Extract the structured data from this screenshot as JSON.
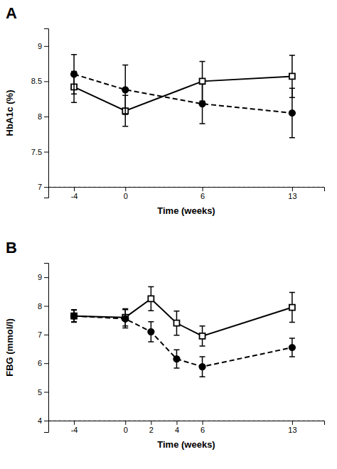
{
  "chart_data": [
    {
      "type": "line",
      "title": "A",
      "xlabel": "Time (weeks)",
      "ylabel": "HbA1c (%)",
      "x": [
        -4,
        0,
        6,
        13
      ],
      "series": [
        {
          "values": [
            8.42,
            8.08,
            8.5,
            8.57
          ],
          "errors": [
            0.22,
            0.22,
            0.28,
            0.3
          ],
          "color": "#000000",
          "line_style": "solid",
          "marker": "open-square"
        },
        {
          "values": [
            8.6,
            8.38,
            8.18,
            8.05
          ],
          "errors": [
            0.28,
            0.35,
            0.28,
            0.35
          ],
          "color": "#000000",
          "line_style": "dashed",
          "marker": "circle"
        }
      ],
      "reference_line": 7.0,
      "xlim": [
        -6.0,
        15.5
      ],
      "xticks": [
        -4,
        0,
        6,
        13
      ],
      "ylim": [
        6.85,
        9.25
      ],
      "yticks": [
        7,
        7.5,
        8,
        8.5,
        9
      ],
      "grid": false
    },
    {
      "type": "line",
      "title": "B",
      "xlabel": "Time (weeks)",
      "ylabel": "FBG (mmol/l)",
      "x": [
        -4,
        0,
        2,
        4,
        6,
        13
      ],
      "series": [
        {
          "values": [
            7.65,
            7.6,
            8.25,
            7.4,
            6.95,
            7.95
          ],
          "errors": [
            0.22,
            0.3,
            0.42,
            0.42,
            0.35,
            0.52
          ],
          "color": "#000000",
          "line_style": "solid",
          "marker": "open-square"
        },
        {
          "values": [
            7.65,
            7.55,
            7.1,
            6.15,
            5.88,
            6.55
          ],
          "errors": [
            0.2,
            0.32,
            0.35,
            0.32,
            0.35,
            0.32
          ],
          "color": "#000000",
          "line_style": "dashed",
          "marker": "circle"
        }
      ],
      "reference_line": 4.0,
      "xlim": [
        -6.0,
        15.5
      ],
      "xticks": [
        -4,
        0,
        2,
        4,
        6,
        13
      ],
      "ylim": [
        3.6,
        9.5
      ],
      "yticks": [
        4,
        5,
        6,
        7,
        8,
        9
      ],
      "grid": false
    }
  ]
}
